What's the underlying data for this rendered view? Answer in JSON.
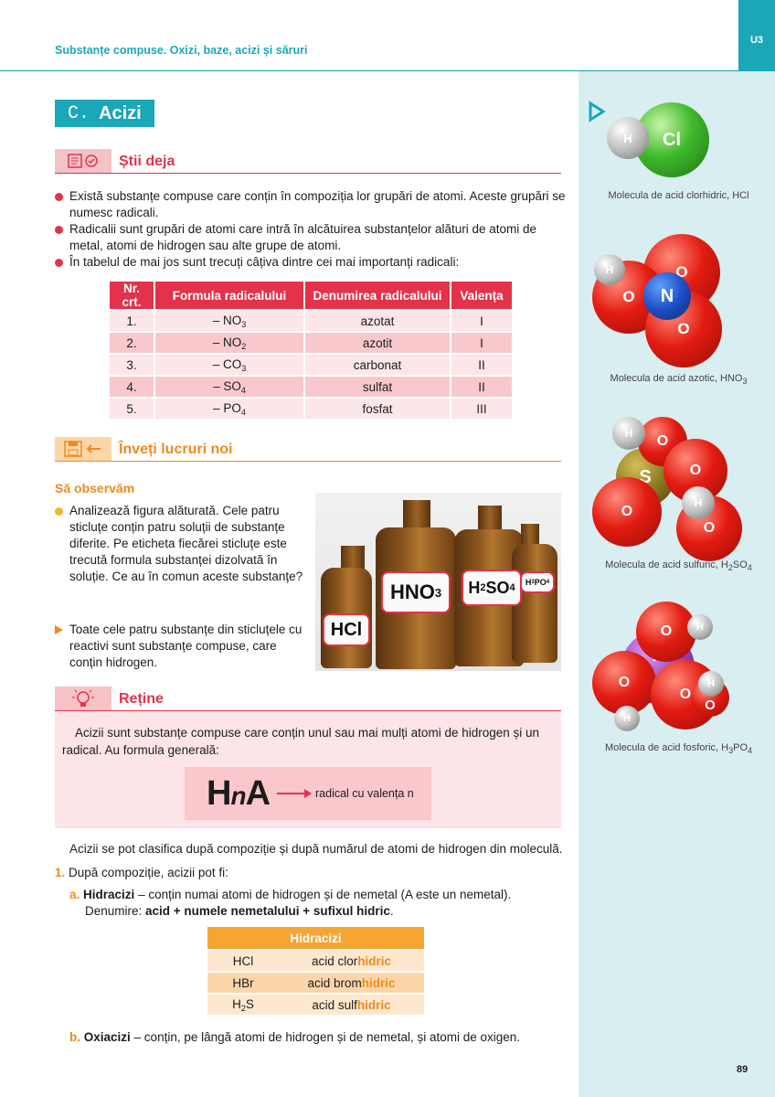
{
  "header": {
    "chapter_title": "Substanțe compuse. Oxizi, baze, acizi și săruri",
    "unit": "U3"
  },
  "section": {
    "letter": "C.",
    "title": "Acizi"
  },
  "stii_deja": {
    "title": "Știi deja",
    "bullets": [
      "Există substanțe compuse care conțin în compoziția lor grupări de atomi. Aceste grupări se numesc radicali.",
      "Radicalii sunt grupări de atomi care intră în alcătuirea substanțelor alături de atomi de metal, atomi de hidrogen sau alte grupe de atomi.",
      "În tabelul de mai jos sunt trecuți câțiva dintre cei mai importanți radicali:"
    ]
  },
  "radicals_table": {
    "headers": [
      "Nr. crt.",
      "Formula radicalului",
      "Denumirea radicalului",
      "Valența"
    ],
    "rows": [
      {
        "nr": "1.",
        "formula": "– NO",
        "sub": "3",
        "name": "azotat",
        "valence": "I"
      },
      {
        "nr": "2.",
        "formula": "– NO",
        "sub": "2",
        "name": "azotit",
        "valence": "I"
      },
      {
        "nr": "3.",
        "formula": "– CO",
        "sub": "3",
        "name": "carbonat",
        "valence": "II"
      },
      {
        "nr": "4.",
        "formula": "– SO",
        "sub": "4",
        "name": "sulfat",
        "valence": "II"
      },
      {
        "nr": "5.",
        "formula": "– PO",
        "sub": "4",
        "name": "fosfat",
        "valence": "III"
      }
    ]
  },
  "invata": {
    "title": "Înveți lucruri noi"
  },
  "observe": {
    "title": "Să observăm",
    "text": "Analizează figura alăturată. Cele patru sticluțe conțin patru soluții de substanțe diferite. Pe eticheta fiecărei sticluțe este trecută formula substanței dizolvată în soluție. Ce au în comun aceste substanțe?",
    "answer": "Toate cele patru substanțe din sticluțele cu reactivi sunt substanțe compuse, care conțin hidrogen."
  },
  "photo_labels": {
    "hcl": "HCl",
    "hno3": "HNO",
    "hno3_sub": "3",
    "h2so4_h": "H",
    "h2so4_h_sub": "2",
    "h2so4_so": "SO",
    "h2so4_so_sub": "4",
    "h3po4_h": "H",
    "h3po4_h_sub": "3",
    "h3po4_po": "PO",
    "h3po4_po_sub": "4"
  },
  "retine": {
    "title": "Reține",
    "text": "Acizii sunt substanțe compuse care conțin unul sau mai mulți atomi de hidrogen și un radical. Au formula generală:",
    "formula_h": "H",
    "formula_n": "n",
    "formula_a": "A",
    "formula_note": "radical cu valența n"
  },
  "classification": {
    "intro": "Acizii se pot clasifica după compoziție și după numărul de atomi de hidrogen din moleculă.",
    "point1_num": "1.",
    "point1": "După compoziție, acizii pot fi:",
    "a_label": "a.",
    "a_term": "Hidracizi",
    "a_text": " – conțin numai atomi de hidrogen și de nemetal (A este un nemetal).",
    "a_name_prefix": "Denumire: ",
    "a_name_rule": "acid + numele nemetalului + sufixul hidric",
    "a_name_end": ".",
    "b_label": "b.",
    "b_term": "Oxiacizi",
    "b_text": " – conțin, pe lângă atomi de hidrogen și de nemetal, și atomi de oxigen."
  },
  "hydracids_table": {
    "header": "Hidracizi",
    "rows": [
      {
        "formula": "HCl",
        "name": "acid clor",
        "suffix": "hidric"
      },
      {
        "formula": "HBr",
        "name": "acid brom",
        "suffix": "hidric"
      },
      {
        "formula": "H",
        "sub": "2",
        "formula_end": "S",
        "name": "acid sulf",
        "suffix": "hidric"
      }
    ]
  },
  "molecules": {
    "hcl": {
      "caption": "Molecula de acid clorhidric, HCl",
      "atoms": [
        "H",
        "Cl"
      ]
    },
    "hno3": {
      "caption": "Molecula de acid azotic, HNO",
      "caption_sub": "3",
      "atoms": [
        "H",
        "O",
        "N",
        "O",
        "O"
      ]
    },
    "h2so4": {
      "caption_a": "Molecula de acid sulfuric, H",
      "sub1": "2",
      "caption_b": "SO",
      "sub2": "4",
      "atoms": [
        "H",
        "O",
        "S",
        "O",
        "H",
        "O",
        "O"
      ]
    },
    "h3po4": {
      "caption_a": "Molecula de acid fosforic, H",
      "sub1": "3",
      "caption_b": "PO",
      "sub2": "4",
      "atoms": [
        "O",
        "H",
        "P",
        "O",
        "O",
        "H",
        "O",
        "H"
      ]
    }
  },
  "page_number": "89",
  "colors": {
    "teal": "#1aa7b8",
    "red": "#e3324a",
    "orange": "#f08a1c",
    "panel": "#d9eef0"
  }
}
